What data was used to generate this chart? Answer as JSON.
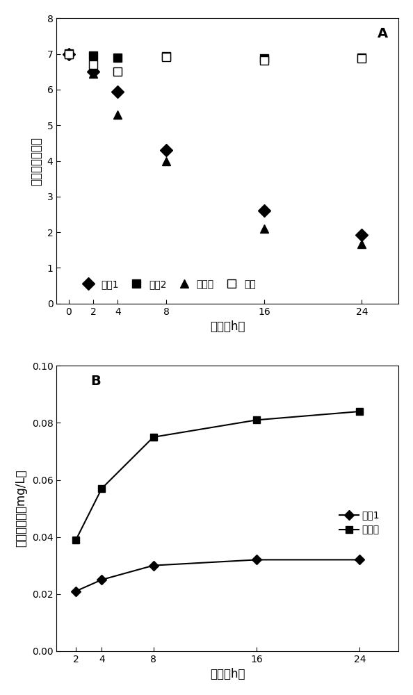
{
  "chart_A": {
    "label": "A",
    "x_ticks": [
      0,
      2,
      4,
      8,
      16,
      24
    ],
    "xlabel": "时间（h）",
    "ylabel": "活细菌的对数值",
    "ylim": [
      0,
      8
    ],
    "yticks": [
      0,
      1,
      2,
      3,
      4,
      5,
      6,
      7,
      8
    ],
    "series": [
      {
        "name": "材料1",
        "x": [
          0,
          2,
          4,
          8,
          16,
          24
        ],
        "y": [
          7.0,
          6.5,
          5.95,
          4.3,
          2.6,
          1.92
        ],
        "marker": "D",
        "markersize": 9,
        "color": "#000000",
        "linestyle": "None",
        "markerfacecolor": "#000000"
      },
      {
        "name": "材料2",
        "x": [
          0,
          2,
          4,
          8,
          16,
          24
        ],
        "y": [
          7.02,
          6.95,
          6.9,
          6.93,
          6.88,
          6.9
        ],
        "marker": "s",
        "markersize": 9,
        "color": "#000000",
        "linestyle": "None",
        "markerfacecolor": "#000000"
      },
      {
        "name": "银颗粒",
        "x": [
          0,
          2,
          4,
          8,
          16,
          24
        ],
        "y": [
          7.0,
          6.45,
          5.3,
          4.0,
          2.1,
          1.68
        ],
        "marker": "^",
        "markersize": 9,
        "color": "#000000",
        "linestyle": "None",
        "markerfacecolor": "#000000"
      },
      {
        "name": "空白",
        "x": [
          0,
          2,
          4,
          8,
          16,
          24
        ],
        "y": [
          7.0,
          6.7,
          6.5,
          6.92,
          6.82,
          6.88
        ],
        "marker": "s",
        "markersize": 9,
        "color": "#000000",
        "linestyle": "None",
        "markerfacecolor": "white"
      }
    ]
  },
  "chart_B": {
    "label": "B",
    "x_ticks": [
      2,
      4,
      8,
      16,
      24
    ],
    "xlabel": "时间（h）",
    "ylabel": "释放银离子（mg/L）",
    "ylim": [
      0,
      0.1
    ],
    "yticks": [
      0,
      0.02,
      0.04,
      0.06,
      0.08,
      0.1
    ],
    "series": [
      {
        "name": "材料1",
        "x": [
          2,
          4,
          8,
          16,
          24
        ],
        "y": [
          0.021,
          0.025,
          0.03,
          0.032,
          0.032
        ],
        "marker": "D",
        "markersize": 7,
        "color": "#000000",
        "linestyle": "-",
        "markerfacecolor": "#000000"
      },
      {
        "name": "银颗粒",
        "x": [
          2,
          4,
          8,
          16,
          24
        ],
        "y": [
          0.039,
          0.057,
          0.075,
          0.081,
          0.084
        ],
        "marker": "s",
        "markersize": 7,
        "color": "#000000",
        "linestyle": "-",
        "markerfacecolor": "#000000"
      }
    ]
  },
  "figure_bg": "#ffffff",
  "axes_bg": "#ffffff"
}
